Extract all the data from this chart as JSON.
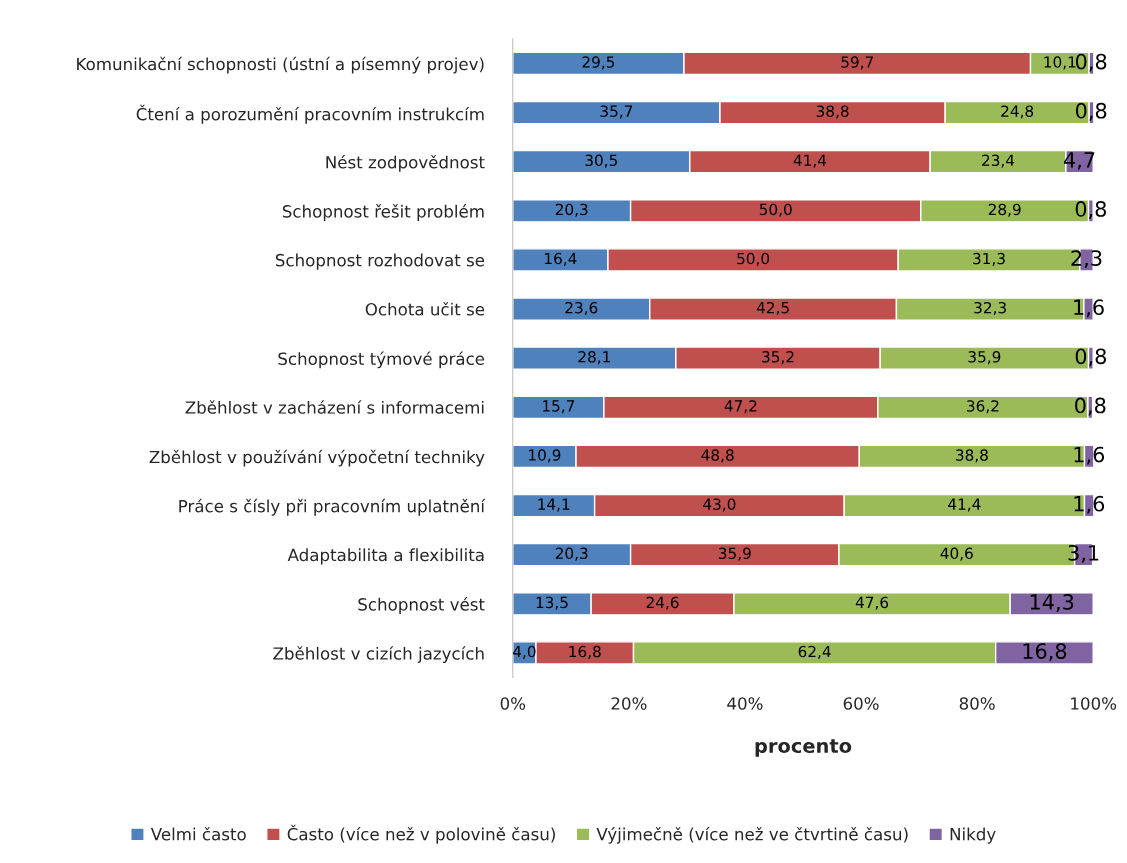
{
  "chart_data": {
    "type": "bar",
    "orientation": "horizontal",
    "stacked": true,
    "xlabel": "procento",
    "categories": [
      "Komunikační schopnosti (ústní a písemný projev)",
      "Čtení a porozumění pracovním instrukcím",
      "Nést zodpovědnost",
      "Schopnost řešit problém",
      "Schopnost rozhodovat se",
      "Ochota učit se",
      "Schopnost týmové práce",
      "Zběhlost v zacházení s informacemi",
      "Zběhlost v používání výpočetní techniky",
      "Práce s čísly při pracovním uplatnění",
      "Adaptabilita a flexibilita",
      "Schopnost vést",
      "Zběhlost v cizích jazycích"
    ],
    "series": [
      {
        "name": "Velmi často",
        "color": "#4f81bd",
        "values": [
          29.5,
          35.7,
          30.5,
          20.3,
          16.4,
          23.6,
          28.1,
          15.7,
          10.9,
          14.1,
          20.3,
          13.5,
          4.0
        ],
        "value_labels": [
          "29,5",
          "35,7",
          "30,5",
          "20,3",
          "16,4",
          "23,6",
          "28,1",
          "15,7",
          "10,9",
          "14,1",
          "20,3",
          "13,5",
          "4,0"
        ]
      },
      {
        "name": "Často (více než v polovině času)",
        "color": "#c0504d",
        "values": [
          59.7,
          38.8,
          41.4,
          50.0,
          50.0,
          42.5,
          35.2,
          47.2,
          48.8,
          43.0,
          35.9,
          24.6,
          16.8
        ],
        "value_labels": [
          "59,7",
          "38,8",
          "41,4",
          "50,0",
          "50,0",
          "42,5",
          "35,2",
          "47,2",
          "48,8",
          "43,0",
          "35,9",
          "24,6",
          "16,8"
        ]
      },
      {
        "name": "Výjimečně (více než ve čtvrtině času)",
        "color": "#9bbb59",
        "values": [
          10.1,
          24.8,
          23.4,
          28.9,
          31.3,
          32.3,
          35.9,
          36.2,
          38.8,
          41.4,
          40.6,
          47.6,
          62.4
        ],
        "value_labels": [
          "10,1",
          "24,8",
          "23,4",
          "28,9",
          "31,3",
          "32,3",
          "35,9",
          "36,2",
          "38,8",
          "41,4",
          "40,6",
          "47,6",
          "62,4"
        ]
      },
      {
        "name": "Nikdy",
        "color": "#8064a2",
        "values": [
          0.8,
          0.8,
          4.7,
          0.8,
          2.3,
          1.6,
          0.8,
          0.8,
          1.6,
          1.6,
          3.1,
          14.3,
          16.8
        ],
        "value_labels": [
          "0,8",
          "0,8",
          "4,7",
          "0,8",
          "2,3",
          "1,6",
          "0,8",
          "0,8",
          "1,6",
          "1,6",
          "3,1",
          "14,3",
          "16,8"
        ]
      }
    ],
    "xlim": [
      0,
      100
    ],
    "xticks": [
      {
        "value": 0,
        "label": "0%"
      },
      {
        "value": 20,
        "label": "20%"
      },
      {
        "value": 40,
        "label": "40%"
      },
      {
        "value": 60,
        "label": "60%"
      },
      {
        "value": 80,
        "label": "80%"
      },
      {
        "value": 100,
        "label": "100%"
      }
    ],
    "grid": false,
    "legend": "bottom"
  }
}
